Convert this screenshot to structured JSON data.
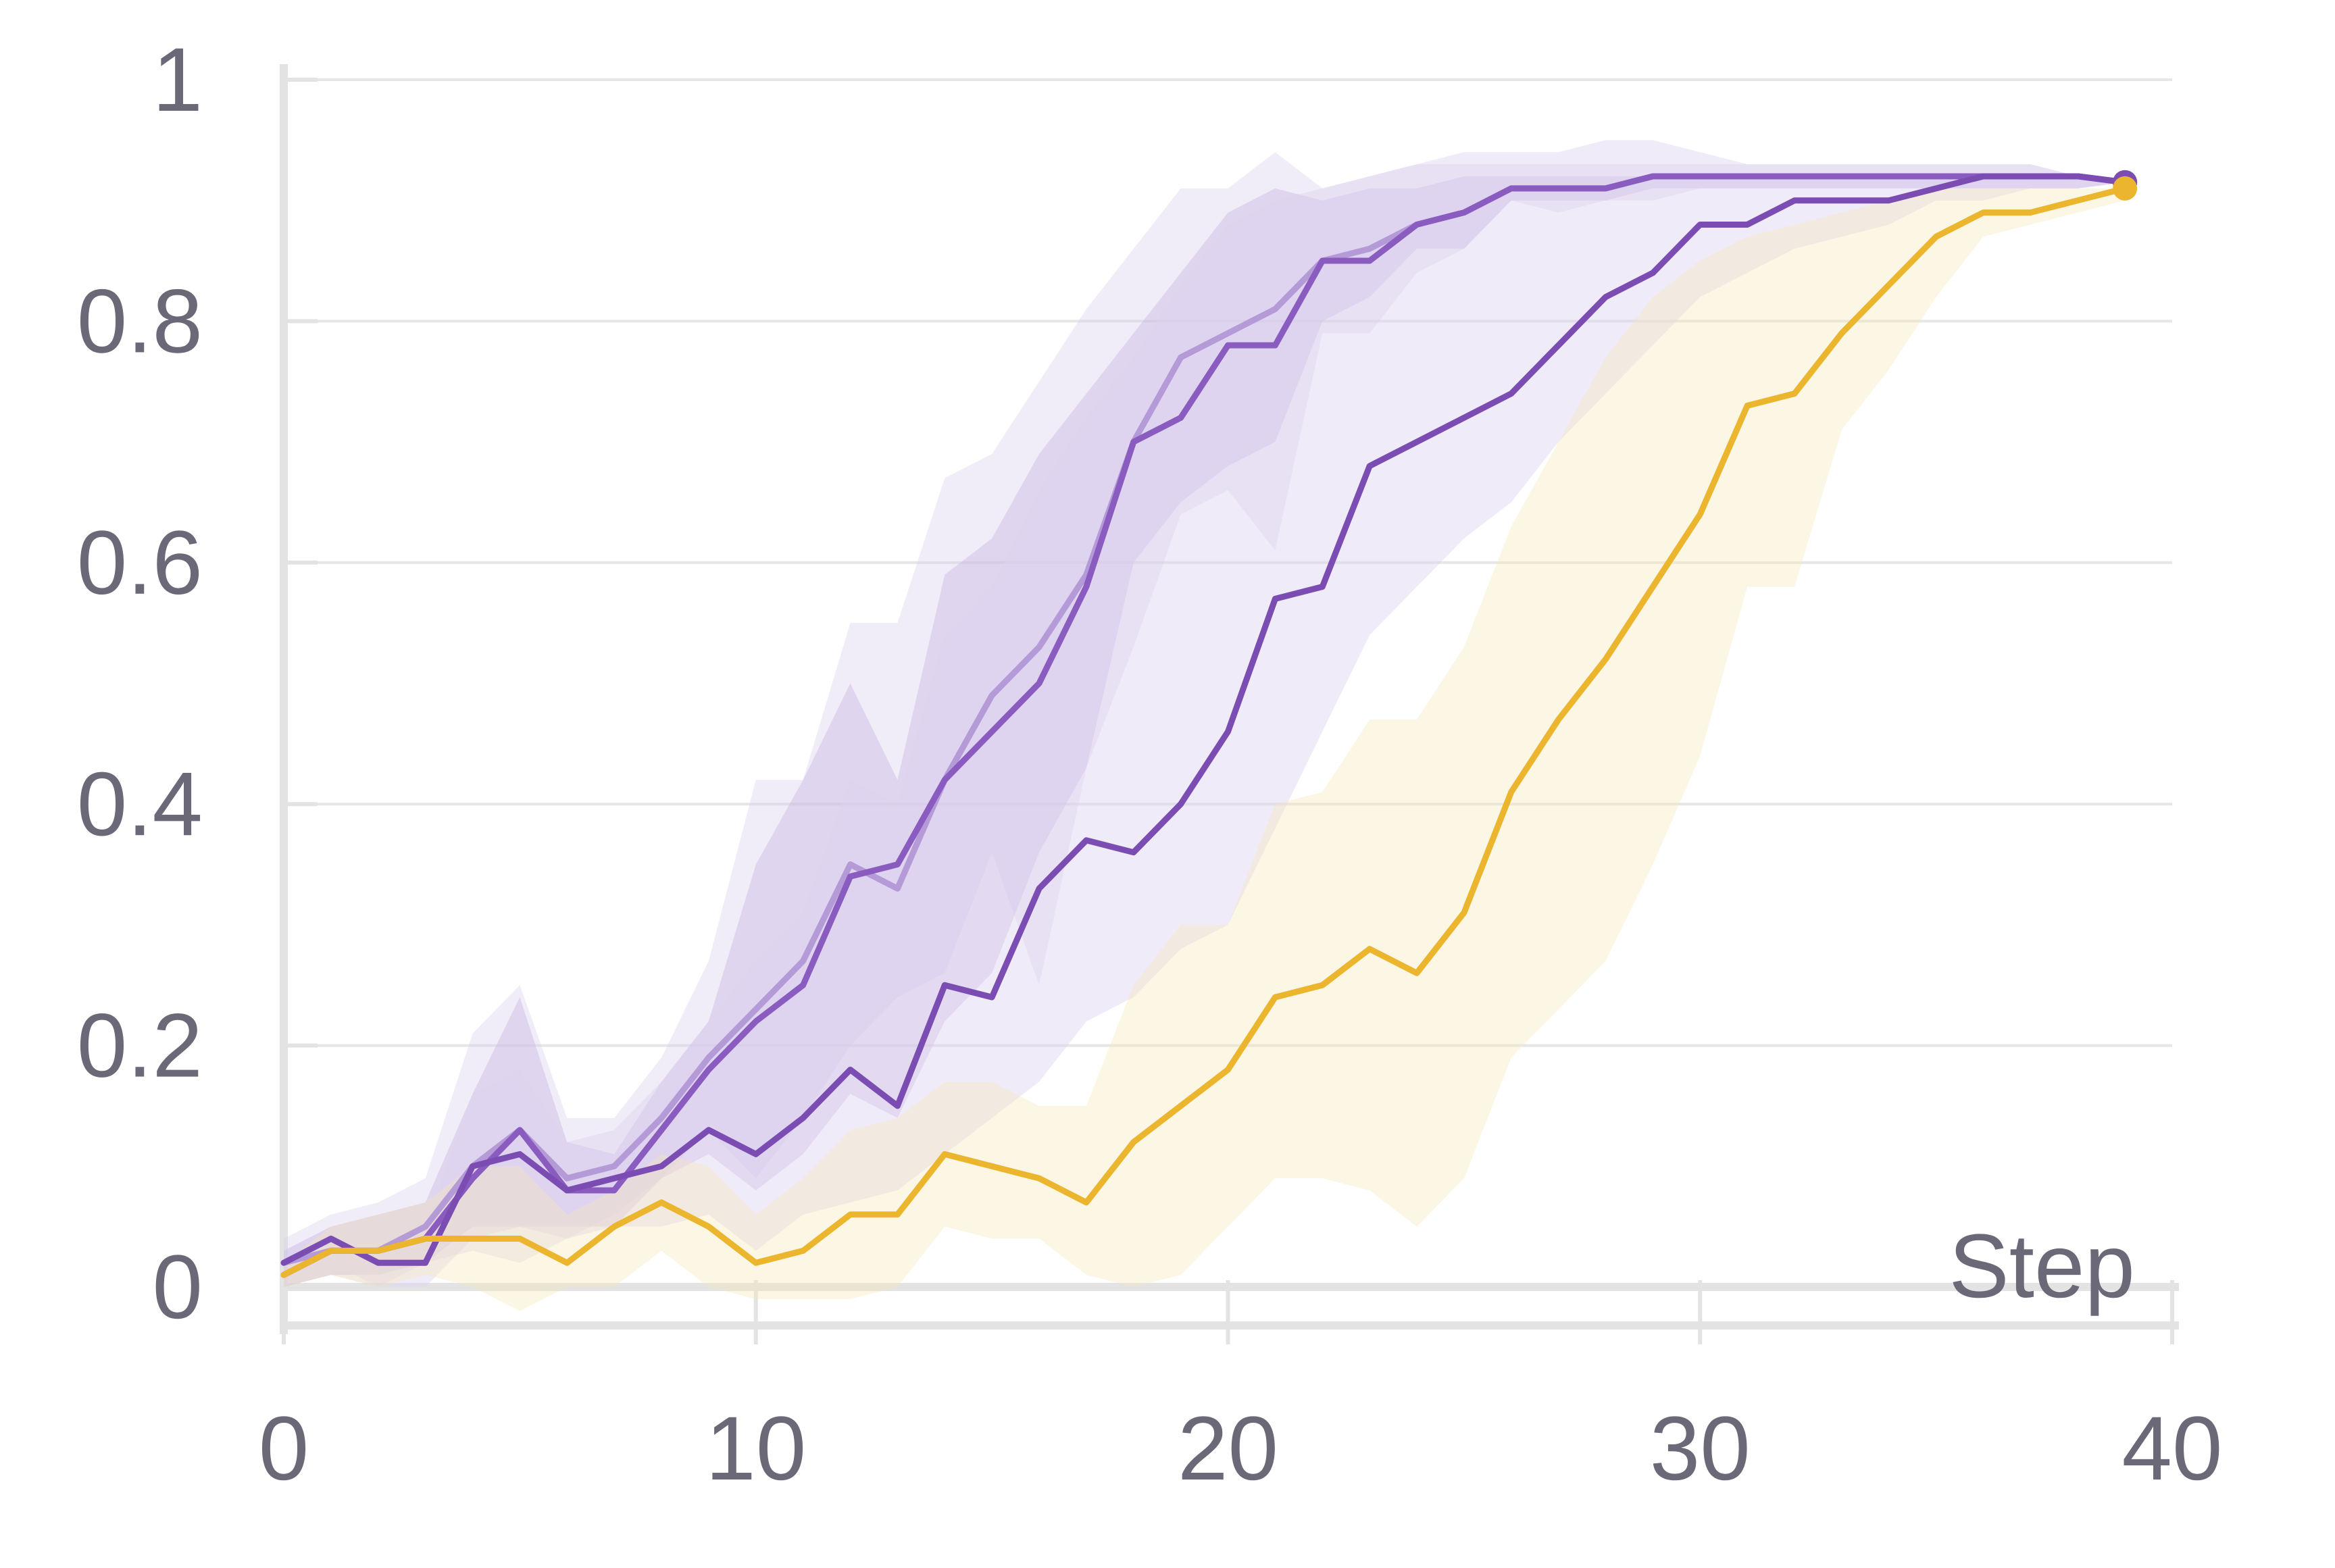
{
  "chart_data": {
    "type": "line",
    "title": "",
    "xlabel": "Step",
    "ylabel": "",
    "xlim": [
      0,
      40
    ],
    "ylim": [
      0,
      1
    ],
    "x_ticks": [
      0,
      10,
      20,
      30,
      40
    ],
    "y_ticks": [
      0,
      0.2,
      0.4,
      0.6,
      0.8,
      1
    ],
    "x_tick_labels": [
      "0",
      "10",
      "20",
      "30",
      "40"
    ],
    "y_tick_labels": [
      "0",
      "0.2",
      "0.4",
      "0.6",
      "0.8",
      "1"
    ],
    "grid": "horizontal",
    "legend": "none",
    "x": [
      0,
      1,
      2,
      3,
      4,
      5,
      6,
      7,
      8,
      9,
      10,
      11,
      12,
      13,
      14,
      15,
      16,
      17,
      18,
      19,
      20,
      21,
      22,
      23,
      24,
      25,
      26,
      27,
      28,
      29,
      30,
      31,
      32,
      33,
      34,
      35,
      36,
      37,
      38,
      39
    ],
    "series": [
      {
        "color": "#b59ad8",
        "band_color": "#d8cceb",
        "band_opacity": 0.35,
        "line_opacity": 1,
        "values": [
          0.02,
          0.03,
          0.03,
          0.05,
          0.1,
          0.13,
          0.09,
          0.1,
          0.14,
          0.19,
          0.23,
          0.27,
          0.35,
          0.33,
          0.42,
          0.49,
          0.53,
          0.59,
          0.7,
          0.77,
          0.79,
          0.81,
          0.85,
          0.86,
          0.88,
          0.89,
          0.91,
          0.91,
          0.91,
          0.92,
          0.92,
          0.92,
          0.92,
          0.92,
          0.92,
          0.92,
          0.92,
          0.92,
          0.92,
          0.915
        ],
        "upper": [
          0.04,
          0.06,
          0.07,
          0.09,
          0.21,
          0.25,
          0.14,
          0.14,
          0.19,
          0.27,
          0.42,
          0.42,
          0.55,
          0.55,
          0.67,
          0.69,
          0.75,
          0.81,
          0.86,
          0.91,
          0.91,
          0.94,
          0.91,
          0.92,
          0.93,
          0.93,
          0.93,
          0.93,
          0.93,
          0.93,
          0.93,
          0.93,
          0.93,
          0.93,
          0.93,
          0.93,
          0.93,
          0.93,
          0.92,
          0.915
        ],
        "lower": [
          0.0,
          0.01,
          0.0,
          0.02,
          0.03,
          0.02,
          0.04,
          0.06,
          0.09,
          0.13,
          0.09,
          0.14,
          0.2,
          0.24,
          0.26,
          0.36,
          0.25,
          0.43,
          0.53,
          0.64,
          0.66,
          0.61,
          0.79,
          0.79,
          0.84,
          0.86,
          0.9,
          0.89,
          0.9,
          0.9,
          0.91,
          0.91,
          0.91,
          0.91,
          0.91,
          0.91,
          0.91,
          0.91,
          0.91,
          0.915
        ]
      },
      {
        "color": "#8a5cc0",
        "band_color": "#c9b8e3",
        "band_opacity": 0.45,
        "line_opacity": 1,
        "values": [
          0.01,
          0.03,
          0.03,
          0.04,
          0.09,
          0.13,
          0.08,
          0.08,
          0.13,
          0.18,
          0.22,
          0.25,
          0.34,
          0.35,
          0.42,
          0.46,
          0.5,
          0.58,
          0.7,
          0.72,
          0.78,
          0.78,
          0.85,
          0.85,
          0.88,
          0.89,
          0.91,
          0.91,
          0.91,
          0.92,
          0.92,
          0.92,
          0.92,
          0.92,
          0.92,
          0.92,
          0.92,
          0.92,
          0.92,
          0.915
        ],
        "upper": [
          0.03,
          0.05,
          0.06,
          0.07,
          0.16,
          0.24,
          0.12,
          0.11,
          0.17,
          0.22,
          0.35,
          0.42,
          0.5,
          0.42,
          0.59,
          0.62,
          0.69,
          0.74,
          0.79,
          0.84,
          0.89,
          0.91,
          0.9,
          0.91,
          0.91,
          0.92,
          0.92,
          0.92,
          0.92,
          0.92,
          0.92,
          0.92,
          0.92,
          0.92,
          0.92,
          0.92,
          0.92,
          0.92,
          0.92,
          0.915
        ],
        "lower": [
          0.0,
          0.01,
          0.01,
          0.02,
          0.05,
          0.05,
          0.05,
          0.05,
          0.09,
          0.11,
          0.08,
          0.11,
          0.16,
          0.14,
          0.22,
          0.26,
          0.36,
          0.43,
          0.6,
          0.65,
          0.68,
          0.7,
          0.8,
          0.82,
          0.86,
          0.86,
          0.9,
          0.9,
          0.9,
          0.91,
          0.91,
          0.91,
          0.91,
          0.91,
          0.91,
          0.91,
          0.91,
          0.91,
          0.91,
          0.915
        ]
      },
      {
        "color": "#7b4db3",
        "band_color": "#ddd3f0",
        "band_opacity": 0.45,
        "line_opacity": 1,
        "values": [
          0.02,
          0.04,
          0.02,
          0.02,
          0.1,
          0.11,
          0.08,
          0.09,
          0.1,
          0.13,
          0.11,
          0.14,
          0.18,
          0.15,
          0.25,
          0.24,
          0.33,
          0.37,
          0.36,
          0.4,
          0.46,
          0.57,
          0.58,
          0.68,
          0.7,
          0.72,
          0.74,
          0.78,
          0.82,
          0.84,
          0.88,
          0.88,
          0.9,
          0.9,
          0.9,
          0.91,
          0.92,
          0.92,
          0.92,
          0.915
        ],
        "upper": [
          0.03,
          0.05,
          0.04,
          0.05,
          0.16,
          0.18,
          0.12,
          0.13,
          0.17,
          0.22,
          0.27,
          0.31,
          0.42,
          0.4,
          0.54,
          0.58,
          0.66,
          0.72,
          0.77,
          0.83,
          0.88,
          0.9,
          0.91,
          0.92,
          0.93,
          0.94,
          0.94,
          0.94,
          0.95,
          0.95,
          0.94,
          0.93,
          0.93,
          0.93,
          0.93,
          0.93,
          0.93,
          0.93,
          0.92,
          0.915
        ],
        "lower": [
          0.0,
          0.02,
          0.0,
          0.0,
          0.04,
          0.05,
          0.04,
          0.05,
          0.05,
          0.06,
          0.03,
          0.06,
          0.07,
          0.08,
          0.11,
          0.14,
          0.17,
          0.22,
          0.24,
          0.28,
          0.3,
          0.38,
          0.46,
          0.54,
          0.58,
          0.62,
          0.65,
          0.7,
          0.74,
          0.78,
          0.82,
          0.84,
          0.86,
          0.87,
          0.88,
          0.9,
          0.9,
          0.91,
          0.91,
          0.915
        ]
      },
      {
        "color": "#ebb52e",
        "band_color": "#f7e4b4",
        "band_opacity": 0.35,
        "line_opacity": 1,
        "values": [
          0.01,
          0.03,
          0.03,
          0.04,
          0.04,
          0.04,
          0.02,
          0.05,
          0.07,
          0.05,
          0.02,
          0.03,
          0.06,
          0.06,
          0.11,
          0.1,
          0.09,
          0.07,
          0.12,
          0.15,
          0.18,
          0.24,
          0.25,
          0.28,
          0.26,
          0.31,
          0.41,
          0.47,
          0.52,
          0.58,
          0.64,
          0.73,
          0.74,
          0.79,
          0.83,
          0.87,
          0.89,
          0.89,
          0.9,
          0.91
        ],
        "upper": [
          0.02,
          0.05,
          0.06,
          0.07,
          0.1,
          0.1,
          0.06,
          0.08,
          0.11,
          0.1,
          0.06,
          0.09,
          0.13,
          0.14,
          0.17,
          0.17,
          0.15,
          0.15,
          0.25,
          0.3,
          0.3,
          0.4,
          0.41,
          0.47,
          0.47,
          0.53,
          0.63,
          0.7,
          0.77,
          0.82,
          0.85,
          0.87,
          0.88,
          0.89,
          0.9,
          0.91,
          0.91,
          0.91,
          0.91,
          0.91
        ],
        "lower": [
          0.0,
          0.01,
          0.0,
          0.01,
          0.0,
          -0.02,
          0.0,
          0.0,
          0.03,
          0.0,
          -0.01,
          -0.01,
          -0.01,
          0.0,
          0.05,
          0.04,
          0.04,
          0.01,
          0.0,
          0.01,
          0.05,
          0.09,
          0.09,
          0.08,
          0.05,
          0.09,
          0.19,
          0.23,
          0.27,
          0.35,
          0.44,
          0.58,
          0.58,
          0.71,
          0.76,
          0.82,
          0.87,
          0.88,
          0.89,
          0.9
        ]
      }
    ]
  }
}
